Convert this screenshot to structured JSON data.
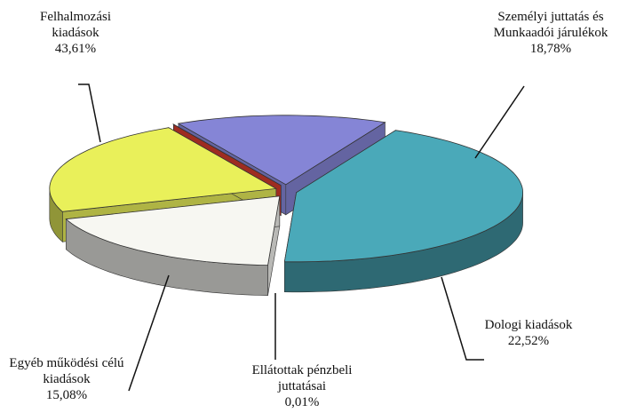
{
  "chart_data": {
    "type": "pie",
    "categories": [
      "Felhalmozási kiadások",
      "Személyi juttatás és Munkaadói járulékok",
      "Dologi kiadások",
      "Ellátottak pénzbeli juttatásai",
      "Egyéb működési célú kiadások"
    ],
    "values": [
      43.61,
      18.78,
      22.52,
      0.01,
      15.08
    ],
    "value_labels": [
      "43,61%",
      "18,78%",
      "22,52%",
      "0,01%",
      "15,08%"
    ],
    "colors": [
      "#4aa9b9",
      "#f7f7f2",
      "#e9f05a",
      "#d23a2c",
      "#8585d6"
    ]
  }
}
